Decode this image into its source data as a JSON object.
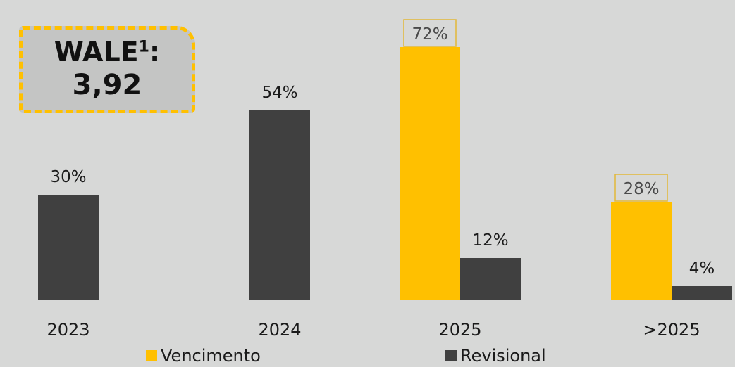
{
  "chart_data": {
    "type": "bar",
    "categories": [
      "2023",
      "2024",
      "2025",
      ">2025"
    ],
    "series": [
      {
        "name": "Vencimento",
        "values": [
          null,
          null,
          72,
          28
        ],
        "color": "#ffc000"
      },
      {
        "name": "Revisional",
        "values": [
          30,
          54,
          12,
          4
        ],
        "color": "#404040"
      }
    ],
    "data_labels": {
      "Vencimento": [
        "",
        "",
        "72%",
        "28%"
      ],
      "Revisional": [
        "30%",
        "54%",
        "12%",
        "4%"
      ]
    },
    "ylim": [
      0,
      75
    ],
    "grid": false,
    "legend_position": "bottom"
  },
  "annotation": {
    "label": "WALE",
    "superscript": "1",
    "suffix": ":",
    "value": "3,92"
  },
  "colors": {
    "background": "#d7d8d7",
    "accent": "#ffc000",
    "dark_bar": "#404040"
  }
}
